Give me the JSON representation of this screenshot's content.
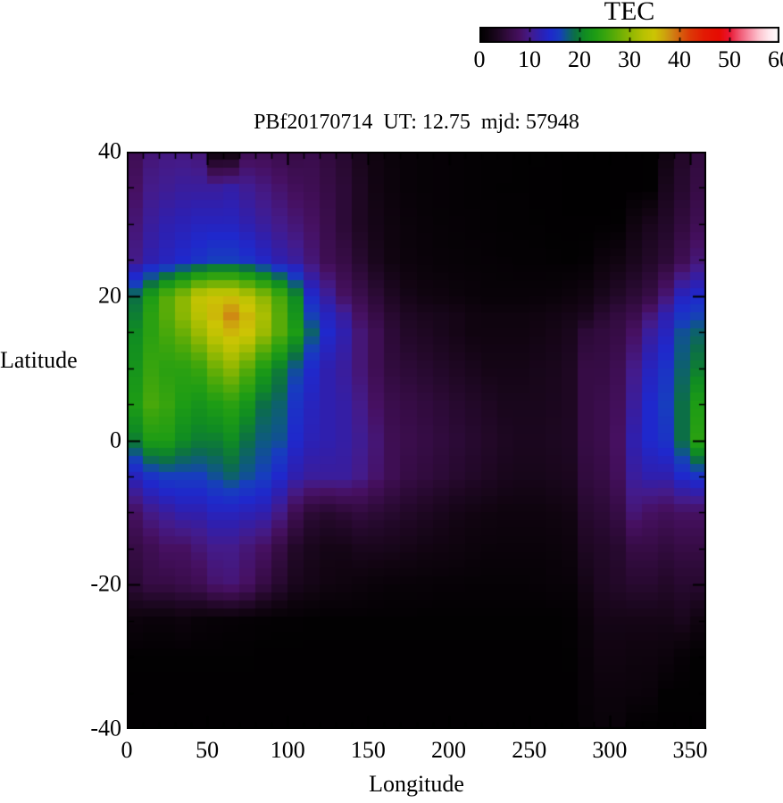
{
  "title": "PBf20170714  UT: 12.75  mjd: 57948",
  "colorbar": {
    "title": "TEC",
    "min": 0,
    "max": 60,
    "tick_labels": [
      "0",
      "10",
      "20",
      "30",
      "40",
      "50",
      "60"
    ],
    "tick_values": [
      0,
      10,
      20,
      30,
      40,
      50,
      60
    ]
  },
  "axes": {
    "xlabel": "Longitude",
    "ylabel": "Latitude",
    "xlim": [
      0,
      360
    ],
    "ylim": [
      -40,
      40
    ],
    "xticks": [
      {
        "label": "0",
        "value": 0
      },
      {
        "label": "50",
        "value": 50
      },
      {
        "label": "100",
        "value": 100
      },
      {
        "label": "150",
        "value": 150
      },
      {
        "label": "200",
        "value": 200
      },
      {
        "label": "250",
        "value": 250
      },
      {
        "label": "300",
        "value": 300
      },
      {
        "label": "350",
        "value": 350
      }
    ],
    "yticks": [
      {
        "label": "40",
        "value": 40
      },
      {
        "label": "20",
        "value": 20
      },
      {
        "label": "0",
        "value": 0
      },
      {
        "label": "-20",
        "value": -20
      },
      {
        "label": "-40",
        "value": -40
      }
    ],
    "x_minor_step": 10,
    "y_minor_step": 5
  },
  "chart_data": {
    "type": "heatmap",
    "title": "PBf20170714  UT: 12.75  mjd: 57948",
    "xlabel": "Longitude",
    "ylabel": "Latitude",
    "xlim": [
      0,
      360
    ],
    "ylim": [
      -40,
      40
    ],
    "colorbar_label": "TEC",
    "value_range": [
      0,
      60
    ],
    "lon_column_width_deg": 10,
    "row_lats": [
      40,
      35,
      30,
      25,
      20,
      17.5,
      15,
      10,
      5,
      0,
      -5,
      -10,
      -15,
      -20,
      -25,
      -30,
      -35,
      -40
    ],
    "values": [
      [
        7,
        9,
        9.5,
        9.5,
        9,
        1.5,
        1.5,
        7,
        7,
        6.5,
        6,
        6.5,
        5.5,
        4.5,
        3,
        2,
        1.4,
        1,
        0.8,
        0.7,
        0.6,
        0.5,
        0.4,
        0.4,
        0.3,
        0.3,
        0.2,
        0.2,
        0.2,
        0.2,
        0.2,
        0.2,
        0.3,
        2,
        4,
        5.5
      ],
      [
        8,
        10,
        10.5,
        11,
        11,
        11,
        11.5,
        10.5,
        9.5,
        8.5,
        7.5,
        7,
        6,
        5,
        3.5,
        2.2,
        1.5,
        1,
        0.8,
        0.7,
        0.6,
        0.5,
        0.4,
        0.3,
        0.3,
        0.2,
        0.2,
        0.15,
        0.15,
        0.15,
        0.2,
        0.2,
        0.3,
        3,
        4.5,
        6
      ],
      [
        9,
        11,
        12,
        12.5,
        13,
        13,
        13,
        12,
        11,
        10,
        9,
        8,
        6.5,
        5,
        3.5,
        2.5,
        1.8,
        1.3,
        1,
        0.8,
        0.7,
        0.6,
        0.5,
        0.4,
        0.4,
        0.3,
        0.2,
        0.2,
        0.2,
        0.2,
        0.3,
        2,
        3,
        4,
        5.5,
        7
      ],
      [
        10,
        12,
        13,
        14,
        15,
        16,
        16,
        15,
        13.5,
        12,
        11,
        9,
        7,
        6,
        4.5,
        3,
        2,
        1.5,
        1.2,
        1,
        0.9,
        0.8,
        0.7,
        0.6,
        0.5,
        0.5,
        0.4,
        0.3,
        0.5,
        1.5,
        2,
        3,
        4,
        5,
        7,
        9
      ],
      [
        19,
        23,
        27,
        30,
        34,
        35,
        35,
        33,
        30,
        26,
        21,
        14,
        11,
        8,
        6.5,
        5,
        3.5,
        2.5,
        2,
        1.8,
        1.5,
        1.2,
        1,
        1,
        1,
        1,
        1.2,
        1.5,
        2,
        3,
        4,
        5,
        6,
        9,
        13,
        14
      ],
      [
        20,
        24,
        27,
        30,
        33,
        36,
        38.5,
        36,
        32,
        27,
        22,
        16,
        13,
        11,
        8,
        6,
        4.5,
        3.5,
        3,
        2.8,
        2.5,
        2,
        1.8,
        1.8,
        1.8,
        2,
        2.2,
        2.5,
        3,
        4.5,
        5.5,
        6.5,
        9,
        12,
        15,
        16
      ],
      [
        21,
        24,
        26,
        28,
        31,
        34,
        36,
        35,
        31,
        27,
        23,
        18,
        14,
        12,
        9,
        7,
        5,
        4,
        3.5,
        3,
        2.5,
        2,
        2,
        2,
        2,
        2.2,
        2.5,
        3,
        5,
        5.5,
        6,
        8,
        11,
        13,
        17,
        18
      ],
      [
        22,
        25,
        24,
        24,
        25,
        28,
        30,
        27,
        23,
        20,
        17,
        14,
        12,
        11,
        9,
        7,
        5.5,
        5,
        4.5,
        4,
        3.5,
        3,
        2.5,
        2.5,
        2.5,
        2.8,
        3,
        3.5,
        6,
        6,
        7,
        10,
        13,
        15,
        18,
        20
      ],
      [
        23,
        26,
        25,
        23,
        22,
        23,
        24,
        22,
        19,
        18,
        15,
        13,
        12,
        11.5,
        10,
        8,
        6.5,
        6,
        5.5,
        5,
        4.5,
        4,
        3.5,
        3,
        3,
        3,
        3.2,
        3.5,
        6,
        6.5,
        7.5,
        11,
        14,
        16,
        19,
        23
      ],
      [
        20,
        23,
        23,
        21,
        20,
        20,
        21,
        19,
        17.5,
        17,
        14,
        12.5,
        12,
        11.5,
        10.5,
        9,
        7,
        6.5,
        6,
        5.5,
        5,
        4.5,
        4,
        3.5,
        3.2,
        3.2,
        3.4,
        3.6,
        6,
        6.5,
        8,
        12,
        14,
        15,
        19,
        24
      ],
      [
        13,
        15,
        16,
        16,
        16,
        17,
        18,
        17,
        16,
        14,
        12,
        11,
        11,
        11,
        10,
        8.5,
        7,
        6,
        5.5,
        5,
        4.5,
        4,
        3.5,
        3,
        2.8,
        2.8,
        3,
        3.2,
        5.5,
        6,
        7.5,
        11,
        12,
        12,
        14,
        15
      ],
      [
        8,
        10,
        11,
        12,
        12,
        13,
        13,
        12.5,
        12,
        10,
        7,
        5,
        4.5,
        5,
        5.5,
        5,
        4.5,
        4,
        3.5,
        3,
        2.5,
        2.2,
        2,
        1.8,
        1.8,
        1.8,
        2,
        2.2,
        4.5,
        5,
        6,
        9,
        8,
        7.5,
        8,
        8
      ],
      [
        6,
        7,
        8,
        8,
        9,
        10,
        10,
        9,
        8,
        6,
        4,
        3,
        2.5,
        2.5,
        3,
        3,
        2.8,
        2.5,
        2.2,
        2,
        1.8,
        1.5,
        1.3,
        1.2,
        1.2,
        1.2,
        1.4,
        1.6,
        3.5,
        4,
        4.5,
        6,
        6,
        5.5,
        6,
        6
      ],
      [
        5,
        6,
        6,
        6.5,
        7,
        8.5,
        9,
        8,
        6,
        4.5,
        3,
        2.5,
        2,
        1.8,
        1.5,
        1.2,
        1,
        1,
        0.9,
        0.8,
        0.8,
        0.7,
        0.7,
        0.7,
        0.7,
        0.8,
        0.9,
        1,
        2.5,
        3.5,
        4,
        4.5,
        4.5,
        4,
        4.5,
        4.5
      ],
      [
        1.5,
        1.2,
        1.2,
        1.5,
        1,
        0.8,
        0.7,
        0.6,
        0.5,
        0.4,
        0.4,
        0.3,
        0.3,
        0.3,
        0.3,
        0.3,
        0.3,
        0.3,
        0.3,
        0.3,
        0.3,
        0.3,
        0.3,
        0.3,
        0.3,
        0.3,
        0.3,
        0.4,
        1.5,
        2.5,
        2.5,
        2.5,
        2.5,
        2.5,
        3,
        2
      ],
      [
        0.3,
        0.3,
        0.3,
        0.3,
        0.3,
        0.3,
        0.3,
        0.3,
        0.2,
        0.2,
        0.2,
        0.2,
        0.2,
        0.2,
        0.2,
        0.2,
        0.2,
        0.2,
        0.2,
        0.2,
        0.2,
        0.2,
        0.2,
        0.2,
        0.2,
        0.2,
        0.2,
        0.3,
        1.2,
        2,
        2,
        1.8,
        1.8,
        1.5,
        0.8,
        0.3
      ],
      [
        0.2,
        0.2,
        0.2,
        0.2,
        0.2,
        0.2,
        0.2,
        0.2,
        0.2,
        0.2,
        0.2,
        0.2,
        0.2,
        0.2,
        0.2,
        0.2,
        0.2,
        0.2,
        0.2,
        0.2,
        0.2,
        0.2,
        0.2,
        0.2,
        0.2,
        0.2,
        0.2,
        0.2,
        1,
        1.5,
        1.5,
        1.4,
        1.2,
        0.3,
        0.3,
        0.3
      ],
      [
        0.2,
        0.2,
        0.2,
        0.2,
        0.2,
        0.2,
        0.2,
        0.2,
        0.2,
        0.2,
        0.2,
        0.2,
        0.2,
        0.2,
        0.2,
        0.2,
        0.2,
        0.2,
        0.2,
        0.2,
        0.2,
        0.2,
        0.2,
        0.2,
        0.2,
        0.2,
        0.2,
        0.2,
        0.8,
        1.2,
        1.2,
        0.3,
        0.2,
        0.2,
        0.2,
        0.2
      ]
    ],
    "colormap_stops": [
      [
        0,
        "#000000"
      ],
      [
        2,
        "#100410"
      ],
      [
        4,
        "#220828"
      ],
      [
        6,
        "#360c45"
      ],
      [
        8,
        "#461061"
      ],
      [
        10,
        "#441b8a"
      ],
      [
        12,
        "#2f1fae"
      ],
      [
        14,
        "#1f28cc"
      ],
      [
        16,
        "#173dbe"
      ],
      [
        17.5,
        "#0e5a80"
      ],
      [
        19,
        "#0c6f46"
      ],
      [
        21,
        "#108c22"
      ],
      [
        23,
        "#1d9c15"
      ],
      [
        25,
        "#37a40e"
      ],
      [
        27,
        "#58ab08"
      ],
      [
        29,
        "#7cb304"
      ],
      [
        31,
        "#9cba02"
      ],
      [
        33,
        "#bac202"
      ],
      [
        35,
        "#ccc404"
      ],
      [
        37,
        "#cda50d"
      ],
      [
        38.5,
        "#cf8414"
      ],
      [
        40,
        "#d5640e"
      ],
      [
        42,
        "#dc3c07"
      ],
      [
        45,
        "#e31a03"
      ],
      [
        48,
        "#e60b02"
      ],
      [
        50,
        "#e91430"
      ],
      [
        52,
        "#f05570"
      ],
      [
        54,
        "#f88da2"
      ],
      [
        56,
        "#fdc4cf"
      ],
      [
        58,
        "#ffe9ee"
      ],
      [
        60,
        "#ffffff"
      ]
    ],
    "legend_position": "top-right-colorbar",
    "grid": false
  }
}
